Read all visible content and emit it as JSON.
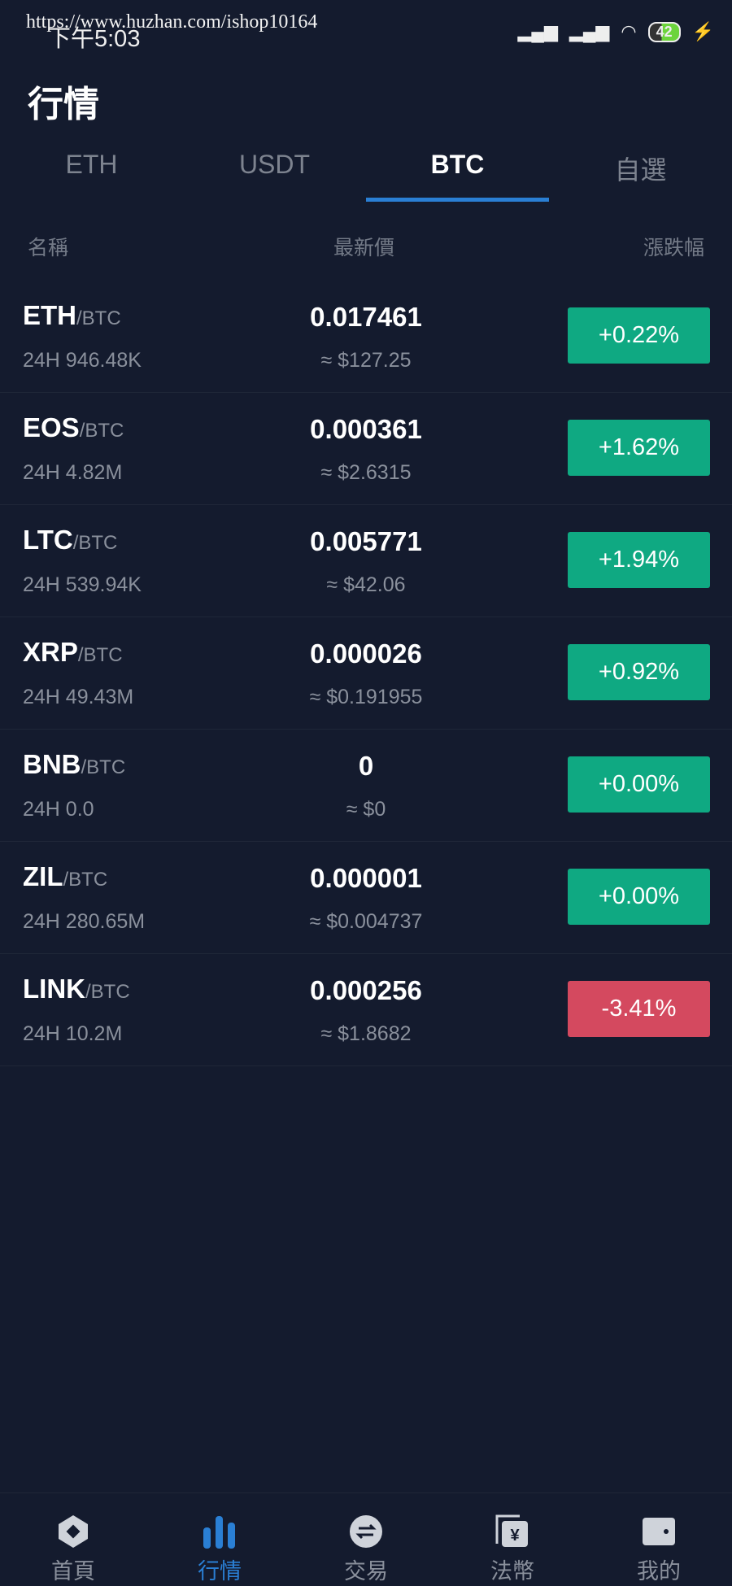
{
  "status_bar": {
    "time": "下午5:03",
    "battery": "42",
    "watermark": "https://www.huzhan.com/ishop10164"
  },
  "page_title": "行情",
  "tabs": [
    {
      "label": "ETH"
    },
    {
      "label": "USDT"
    },
    {
      "label": "BTC",
      "active": true
    },
    {
      "label": "自選"
    }
  ],
  "columns": {
    "name": "名稱",
    "price": "最新價",
    "change": "漲跌幅"
  },
  "colors": {
    "up": "#0fa982",
    "down": "#d4495f",
    "accent": "#2a7fd4"
  },
  "rows": [
    {
      "symbol": "ETH",
      "quote": "/BTC",
      "volume": "24H 946.48K",
      "price": "0.017461",
      "usd": "≈ $127.25",
      "change": "+0.22%",
      "dir": "up"
    },
    {
      "symbol": "EOS",
      "quote": "/BTC",
      "volume": "24H 4.82M",
      "price": "0.000361",
      "usd": "≈ $2.6315",
      "change": "+1.62%",
      "dir": "up"
    },
    {
      "symbol": "LTC",
      "quote": "/BTC",
      "volume": "24H 539.94K",
      "price": "0.005771",
      "usd": "≈ $42.06",
      "change": "+1.94%",
      "dir": "up"
    },
    {
      "symbol": "XRP",
      "quote": "/BTC",
      "volume": "24H 49.43M",
      "price": "0.000026",
      "usd": "≈ $0.191955",
      "change": "+0.92%",
      "dir": "up"
    },
    {
      "symbol": "BNB",
      "quote": "/BTC",
      "volume": "24H 0.0",
      "price": "0",
      "usd": "≈ $0",
      "change": "+0.00%",
      "dir": "up"
    },
    {
      "symbol": "ZIL",
      "quote": "/BTC",
      "volume": "24H 280.65M",
      "price": "0.000001",
      "usd": "≈ $0.004737",
      "change": "+0.00%",
      "dir": "up"
    },
    {
      "symbol": "LINK",
      "quote": "/BTC",
      "volume": "24H 10.2M",
      "price": "0.000256",
      "usd": "≈ $1.8682",
      "change": "-3.41%",
      "dir": "down"
    }
  ],
  "nav": [
    {
      "label": "首頁",
      "icon": "home-hexagon-icon"
    },
    {
      "label": "行情",
      "icon": "market-bars-icon",
      "active": true
    },
    {
      "label": "交易",
      "icon": "exchange-icon"
    },
    {
      "label": "法幣",
      "icon": "fiat-yen-icon"
    },
    {
      "label": "我的",
      "icon": "wallet-icon"
    }
  ]
}
